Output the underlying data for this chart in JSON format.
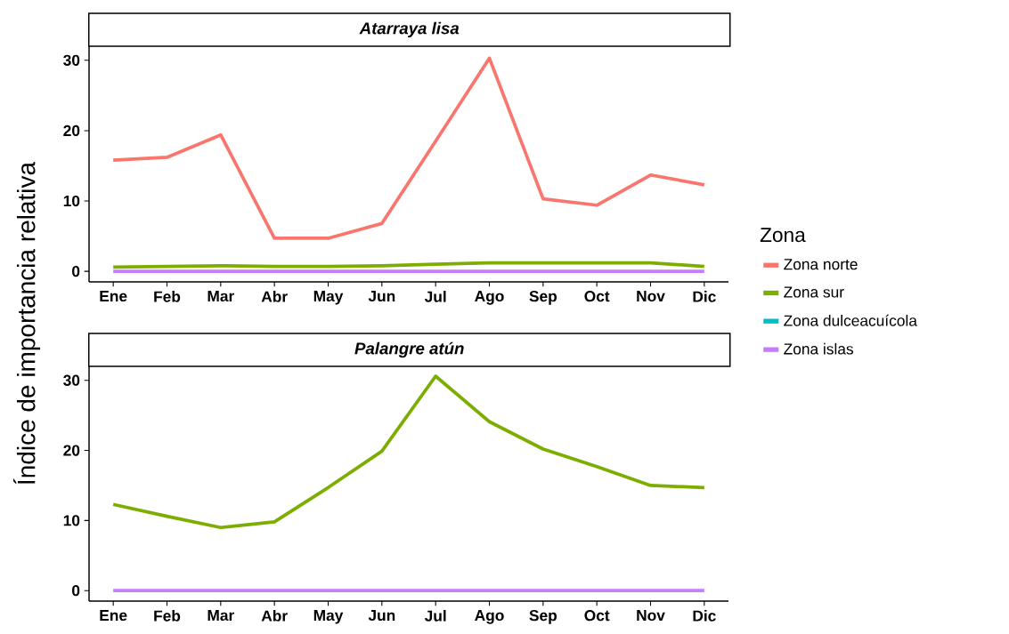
{
  "chart_data": [
    {
      "type": "line",
      "title": "Atarraya lisa",
      "ylabel": "Índice de importancia relativa",
      "legend_title": "Zona",
      "legend": "right",
      "categories": [
        "Ene",
        "Feb",
        "Mar",
        "Abr",
        "May",
        "Jun",
        "Jul",
        "Ago",
        "Sep",
        "Oct",
        "Nov",
        "Dic"
      ],
      "ylim": [
        -1.5,
        32
      ],
      "yticks": [
        0,
        10,
        20,
        30
      ],
      "series": [
        {
          "name": "Zona norte",
          "color": "#f8766d",
          "values": [
            15.8,
            16.2,
            19.4,
            4.7,
            4.7,
            6.8,
            18.5,
            30.3,
            10.3,
            9.4,
            13.7,
            12.3
          ]
        },
        {
          "name": "Zona sur",
          "color": "#7cae00",
          "values": [
            0.6,
            0.7,
            0.8,
            0.7,
            0.7,
            0.8,
            1.0,
            1.2,
            1.2,
            1.2,
            1.2,
            0.7
          ]
        },
        {
          "name": "Zona dulceacuícola",
          "color": "#00bfc4",
          "values": [
            null,
            null,
            null,
            null,
            null,
            null,
            null,
            null,
            null,
            null,
            null,
            null
          ]
        },
        {
          "name": "Zona islas",
          "color": "#c77cff",
          "values": [
            0,
            0,
            0,
            0,
            0,
            0,
            0,
            0,
            0,
            0,
            0,
            0
          ]
        }
      ]
    },
    {
      "type": "line",
      "title": "Palangre atún",
      "legend": false,
      "categories": [
        "Ene",
        "Feb",
        "Mar",
        "Abr",
        "May",
        "Jun",
        "Jul",
        "Ago",
        "Sep",
        "Oct",
        "Nov",
        "Dic"
      ],
      "ylim": [
        -1.5,
        32
      ],
      "yticks": [
        0,
        10,
        20,
        30
      ],
      "series": [
        {
          "color": "#7cae00",
          "values": [
            12.3,
            10.6,
            9.0,
            9.8,
            14.7,
            19.9,
            30.6,
            24.1,
            20.2,
            17.7,
            15.0,
            14.7
          ]
        },
        {
          "color": "#c77cff",
          "values": [
            0,
            0,
            0,
            0,
            0,
            0,
            0,
            0,
            0,
            0,
            0,
            0
          ]
        }
      ]
    }
  ]
}
